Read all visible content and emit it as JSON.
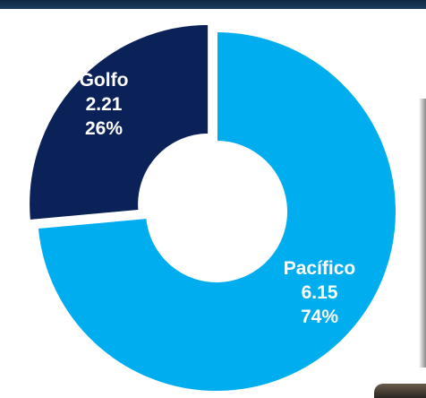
{
  "chart_data": {
    "type": "pie",
    "variant": "donut",
    "slices": [
      {
        "name": "Golfo",
        "value": 2.21,
        "percent_label": "26%",
        "value_label": "2.21",
        "color": "#0b2258"
      },
      {
        "name": "Pacífico",
        "value": 6.15,
        "percent_label": "74%",
        "value_label": "6.15",
        "color": "#00aeef"
      }
    ],
    "title": "",
    "legend": "none"
  },
  "colors": {
    "top_bar": "#0f2741",
    "background": "#ffffff"
  }
}
